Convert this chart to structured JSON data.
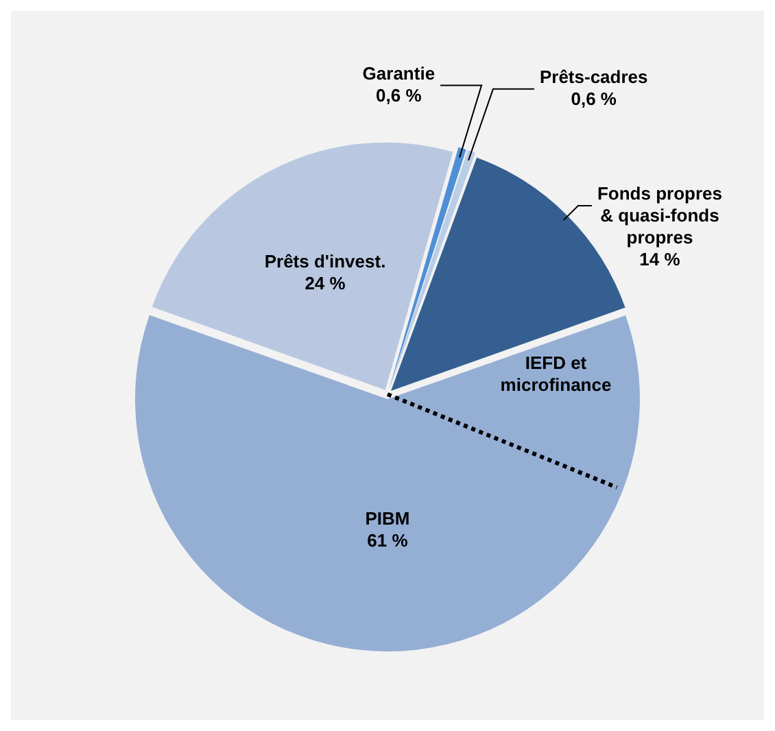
{
  "chart_data": {
    "type": "pie",
    "categories": [
      "Prêts-cadres",
      "Fonds propres & quasi-fonds propres",
      "PIBM",
      "Prêts d'invest.",
      "Garantie"
    ],
    "values": [
      0.6,
      14,
      61,
      24,
      0.6
    ],
    "value_labels": [
      "0,6 %",
      "14 %",
      "61 %",
      "24 %",
      "0,6 %"
    ],
    "colors": [
      "#b8cde6",
      "#355f91",
      "#95aed4",
      "#b9c8e0",
      "#4f8fd8"
    ],
    "annotations": [
      "IEFD et microfinance"
    ],
    "needle": "PIBM",
    "legend": false
  }
}
